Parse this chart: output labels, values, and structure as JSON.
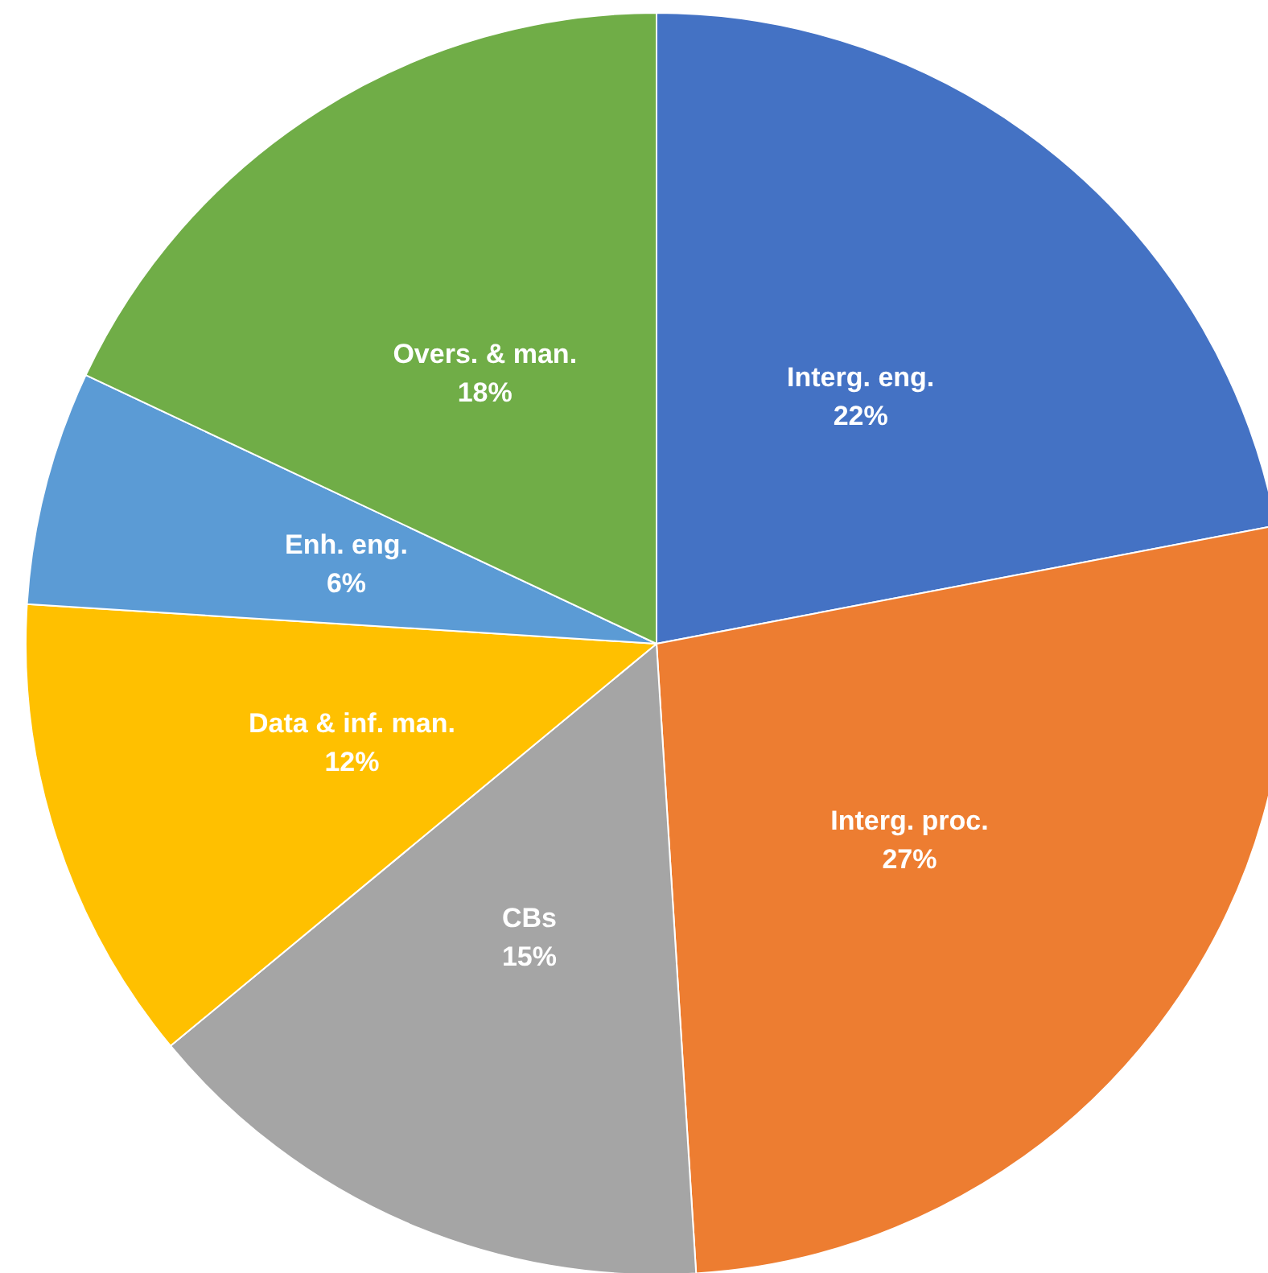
{
  "chart_data": {
    "type": "pie",
    "categories": [
      "Interg. eng.",
      "Interg. proc.",
      "CBs",
      "Data & inf. man.",
      "Enh. eng.",
      "Overs. & man."
    ],
    "values": [
      22,
      27,
      15,
      12,
      6,
      18
    ],
    "value_labels": [
      "22%",
      "27%",
      "15%",
      "12%",
      "6%",
      "18%"
    ],
    "colors": [
      "#4472c4",
      "#ed7d31",
      "#a5a5a5",
      "#ffc000",
      "#5b9bd5",
      "#70ad47"
    ],
    "legend": false
  }
}
